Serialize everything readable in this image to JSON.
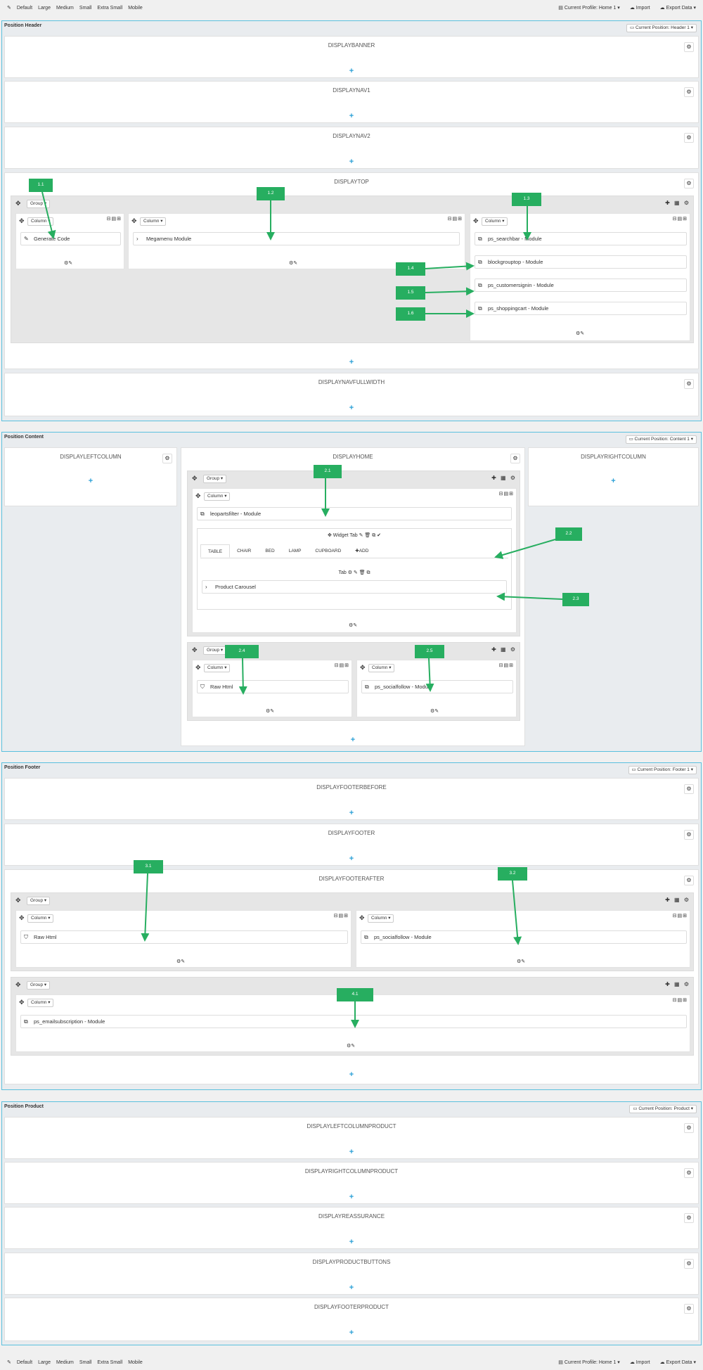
{
  "toolbar": {
    "devices": [
      "Default",
      "Large",
      "Medium",
      "Small",
      "Extra Small",
      "Mobile"
    ],
    "profile": "Current Profile: Home 1 ▾",
    "import": "Import",
    "export": "Export Data ▾"
  },
  "header": {
    "title": "Position Header",
    "position": "Current Position: Header 1 ▾",
    "hooks": [
      "DISPLAYBANNER",
      "DISPLAYNAV1",
      "DISPLAYNAV2",
      "DISPLAYTOP",
      "DISPLAYNAVFULLWIDTH"
    ],
    "top_group": "Group ▾",
    "col1": {
      "label": "Column ▾",
      "modules": [
        "Generate Code"
      ]
    },
    "col2": {
      "label": "Column ▾",
      "modules": [
        "Megamenu Module"
      ]
    },
    "col3": {
      "label": "Column ▾",
      "modules": [
        "ps_searchbar - Module",
        "blockgrouptop - Module",
        "ps_customersignin - Module",
        "ps_shoppingcart - Module"
      ]
    }
  },
  "content": {
    "title": "Position Content",
    "position": "Current Position: Content 1 ▾",
    "left": "DISPLAYLEFTCOLUMN",
    "home": "DISPLAYHOME",
    "right": "DISPLAYRIGHTCOLUMN",
    "group1": "Group ▾",
    "col": "Column ▾",
    "module1": "leopartsfilter - Module",
    "widget_tab": "Widget Tab",
    "tabs": [
      "TABLE",
      "CHAIR",
      "BED",
      "LAMP",
      "CUPBOARD",
      "ADD"
    ],
    "tab_label": "Tab",
    "carousel": "Product Carousel",
    "group2": "Group ▾",
    "g2c1": "Raw Html",
    "g2c2": "ps_socialfollow - Module"
  },
  "footer": {
    "title": "Position Footer",
    "position": "Current Position: Footer 1 ▾",
    "hooks": [
      "DISPLAYFOOTERBEFORE",
      "DISPLAYFOOTER",
      "DISPLAYFOOTERAFTER"
    ],
    "group": "Group ▾",
    "col": "Column ▾",
    "c1": "Raw Html",
    "c2": "ps_socialfollow - Module",
    "c3": "ps_emailsubscription - Module"
  },
  "product": {
    "title": "Position Product",
    "position": "Current Position: Product ▾",
    "hooks": [
      "DISPLAYLEFTCOLUMNPRODUCT",
      "DISPLAYRIGHTCOLUMNPRODUCT",
      "DISPLAYREASSURANCE",
      "DISPLAYPRODUCTBUTTONS",
      "DISPLAYFOOTERPRODUCT"
    ]
  },
  "tags": [
    "1.1",
    "1.2",
    "1.3",
    "1.4",
    "1.5",
    "1.6",
    "2.1",
    "2.2",
    "2.3",
    "2.4",
    "2.5",
    "3.1",
    "3.2",
    "4.1"
  ],
  "icons": {
    "pencil": "pencil-icon",
    "gear": "gear-icon",
    "plus": "plus-icon",
    "move": "move-icon",
    "module": "module-icon",
    "chevron": "chevron-icon",
    "html": "html5-icon"
  }
}
